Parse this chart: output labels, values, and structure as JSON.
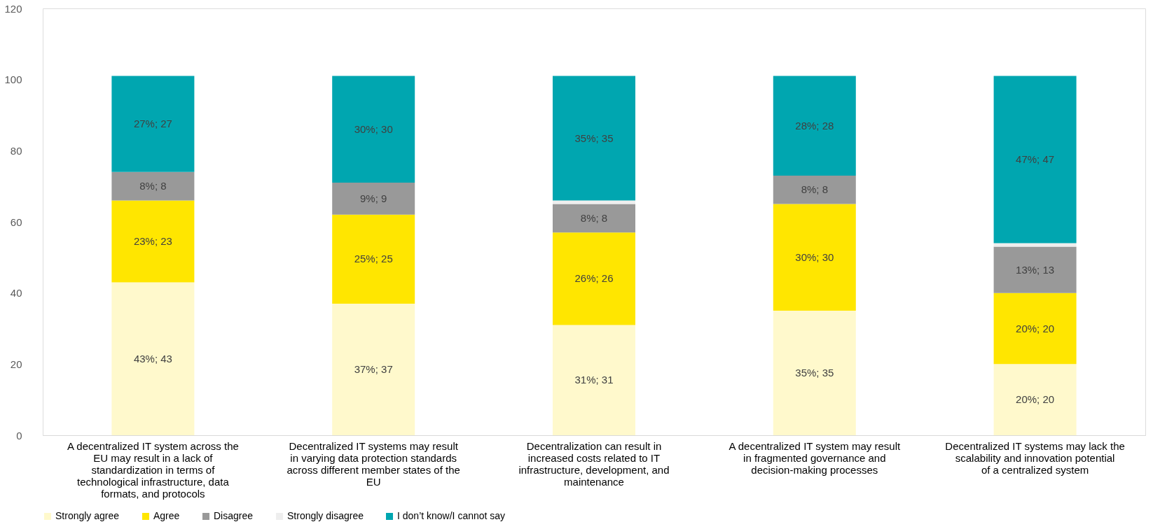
{
  "chart_data": {
    "type": "bar",
    "stacked": true,
    "categories": [
      "A decentralized IT system across the EU may result in a lack of standardization in terms of technological infrastructure, data formats, and protocols",
      "Decentralized IT systems may result in varying data protection standards across different member states of the EU",
      "Decentralization can result in increased costs related to IT infrastructure, development, and maintenance",
      "A decentralized IT system may result in fragmented governance and decision-making processes",
      "Decentralized IT systems may lack the scalability and innovation potential of a centralized system"
    ],
    "series": [
      {
        "name": "Strongly agree",
        "color": "#fff9cc",
        "values": [
          43,
          37,
          31,
          35,
          20
        ],
        "value_labels": [
          "43%; 43",
          "37%; 37",
          "31%; 31",
          "35%; 35",
          "20%; 20"
        ]
      },
      {
        "name": "Agree",
        "color": "#ffe600",
        "values": [
          23,
          25,
          26,
          30,
          20
        ],
        "value_labels": [
          "23%; 23",
          "25%; 25",
          "26%; 26",
          "30%; 30",
          "20%; 20"
        ]
      },
      {
        "name": "Disagree",
        "color": "#999999",
        "values": [
          8,
          9,
          8,
          8,
          13
        ],
        "value_labels": [
          "8%; 8",
          "9%; 9",
          "8%; 8",
          "8%; 8",
          "13%; 13"
        ]
      },
      {
        "name": "Strongly disagree",
        "color": "#eeeeee",
        "values": [
          0,
          0,
          1,
          0,
          1
        ],
        "value_labels": [
          null,
          null,
          null,
          null,
          null
        ]
      },
      {
        "name": "I don’t know/I cannot say",
        "color": "#00a6b0",
        "values": [
          27,
          30,
          35,
          28,
          47
        ],
        "value_labels": [
          "27%; 27",
          "30%; 30",
          "35%; 35",
          "28%; 28",
          "47%; 47"
        ]
      }
    ],
    "ylim": [
      0,
      120
    ],
    "yticks": [
      0,
      20,
      40,
      60,
      80,
      100,
      120
    ],
    "grid": false,
    "legend": "bottom"
  }
}
